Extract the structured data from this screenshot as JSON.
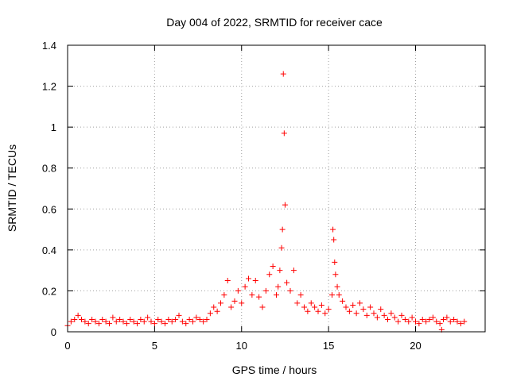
{
  "chart_data": {
    "type": "scatter",
    "title": "Day 004 of 2022, SRMTID for receiver cace",
    "xlabel": "GPS time / hours",
    "ylabel": "SRMTID / TECUs",
    "xlim": [
      0,
      24
    ],
    "ylim": [
      0,
      1.4
    ],
    "xticks": [
      0,
      5,
      10,
      15,
      20
    ],
    "xtick_labels": [
      "0",
      "5",
      "10",
      "15",
      "20"
    ],
    "yticks": [
      0,
      0.2,
      0.4,
      0.6,
      0.8,
      1,
      1.2,
      1.4
    ],
    "ytick_labels": [
      "0",
      "0.2",
      "0.4",
      "0.6",
      "0.8",
      "1",
      "1.2",
      "1.4"
    ],
    "grid": true,
    "marker": "+",
    "color": "#ff0000",
    "series": [
      {
        "name": "SRMTID",
        "x": [
          0.0,
          0.2,
          0.4,
          0.6,
          0.8,
          1.0,
          1.2,
          1.4,
          1.6,
          1.8,
          2.0,
          2.2,
          2.4,
          2.6,
          2.8,
          3.0,
          3.2,
          3.4,
          3.6,
          3.8,
          4.0,
          4.2,
          4.4,
          4.6,
          4.8,
          5.0,
          5.2,
          5.4,
          5.6,
          5.8,
          6.0,
          6.2,
          6.4,
          6.6,
          6.8,
          7.0,
          7.2,
          7.4,
          7.6,
          7.8,
          8.0,
          8.2,
          8.4,
          8.6,
          8.8,
          9.0,
          9.2,
          9.4,
          9.6,
          9.8,
          10.0,
          10.2,
          10.4,
          10.6,
          10.8,
          11.0,
          11.2,
          11.4,
          11.6,
          11.8,
          12.0,
          12.1,
          12.2,
          12.3,
          12.35,
          12.4,
          12.45,
          12.5,
          12.6,
          12.8,
          13.0,
          13.2,
          13.4,
          13.6,
          13.8,
          14.0,
          14.2,
          14.4,
          14.6,
          14.8,
          15.0,
          15.2,
          15.25,
          15.3,
          15.35,
          15.4,
          15.5,
          15.6,
          15.8,
          16.0,
          16.2,
          16.4,
          16.6,
          16.8,
          17.0,
          17.2,
          17.4,
          17.6,
          17.8,
          18.0,
          18.2,
          18.4,
          18.6,
          18.8,
          19.0,
          19.2,
          19.4,
          19.6,
          19.8,
          20.0,
          20.2,
          20.4,
          20.6,
          20.8,
          21.0,
          21.2,
          21.4,
          21.5,
          21.6,
          21.8,
          22.0,
          22.2,
          22.4,
          22.6,
          22.8
        ],
        "y": [
          0.03,
          0.05,
          0.06,
          0.08,
          0.06,
          0.05,
          0.04,
          0.06,
          0.05,
          0.04,
          0.06,
          0.05,
          0.04,
          0.07,
          0.05,
          0.06,
          0.05,
          0.04,
          0.06,
          0.05,
          0.04,
          0.06,
          0.05,
          0.07,
          0.05,
          0.04,
          0.06,
          0.05,
          0.04,
          0.06,
          0.05,
          0.06,
          0.08,
          0.05,
          0.04,
          0.06,
          0.05,
          0.07,
          0.06,
          0.05,
          0.06,
          0.09,
          0.12,
          0.1,
          0.14,
          0.18,
          0.25,
          0.12,
          0.15,
          0.2,
          0.14,
          0.22,
          0.26,
          0.18,
          0.25,
          0.17,
          0.12,
          0.2,
          0.28,
          0.32,
          0.18,
          0.22,
          0.3,
          0.41,
          0.5,
          1.26,
          0.97,
          0.62,
          0.24,
          0.2,
          0.3,
          0.14,
          0.18,
          0.12,
          0.1,
          0.14,
          0.12,
          0.1,
          0.13,
          0.09,
          0.11,
          0.18,
          0.5,
          0.45,
          0.34,
          0.28,
          0.22,
          0.18,
          0.15,
          0.12,
          0.1,
          0.13,
          0.09,
          0.14,
          0.11,
          0.08,
          0.12,
          0.09,
          0.07,
          0.11,
          0.08,
          0.06,
          0.09,
          0.07,
          0.05,
          0.08,
          0.06,
          0.05,
          0.07,
          0.05,
          0.04,
          0.06,
          0.05,
          0.06,
          0.07,
          0.05,
          0.04,
          0.01,
          0.06,
          0.07,
          0.05,
          0.06,
          0.05,
          0.04,
          0.05
        ]
      }
    ]
  }
}
